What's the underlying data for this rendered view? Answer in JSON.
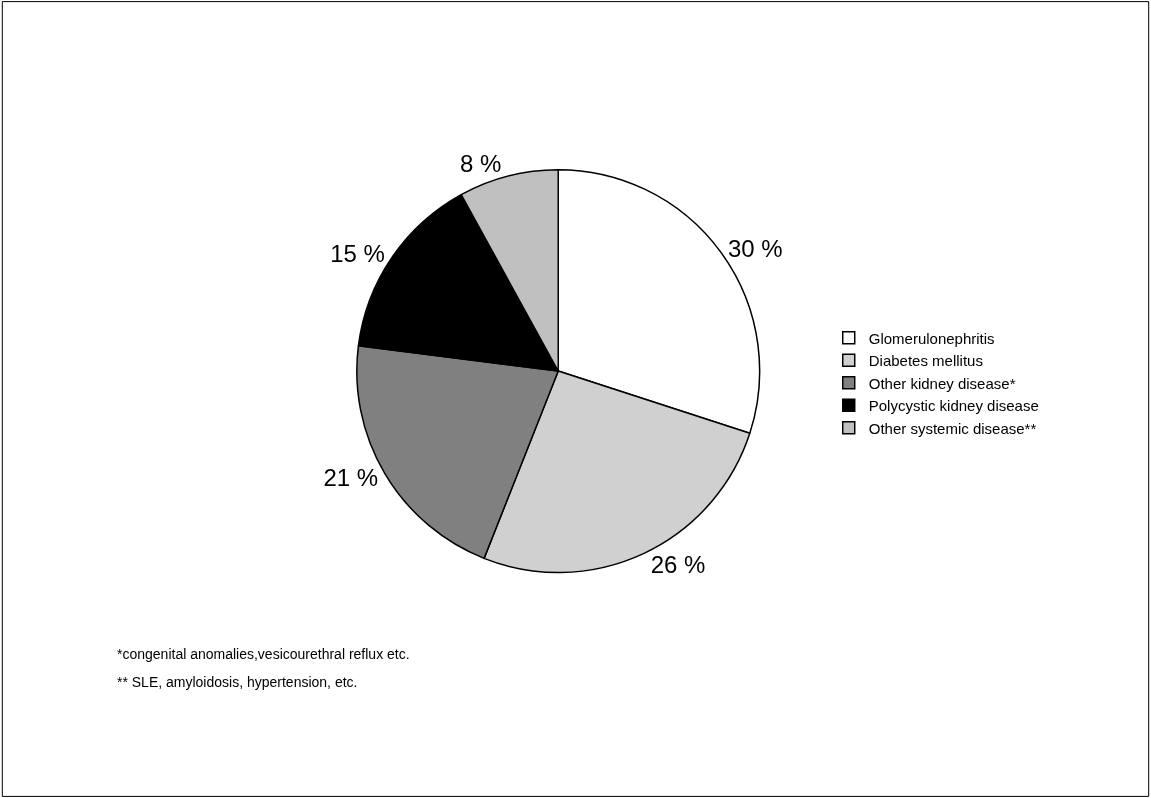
{
  "chart_data": {
    "type": "pie",
    "categories": [
      "Glomerulonephritis",
      "Diabetes mellitus",
      "Other kidney disease*",
      "Polycystic kidney disease",
      "Other systemic disease**"
    ],
    "values": [
      30,
      26,
      21,
      15,
      8
    ],
    "value_labels": [
      "30 %",
      "26 %",
      "21 %",
      "15 %",
      "8 %"
    ],
    "colors": [
      "#ffffff",
      "#d0d0d0",
      "#808080",
      "#000000",
      "#c0c0c0"
    ],
    "legend": "right",
    "annotations": [
      "*congenital anomalies,vesicourethral reflux etc.",
      "** SLE, amyloidosis, hypertension, etc."
    ]
  }
}
